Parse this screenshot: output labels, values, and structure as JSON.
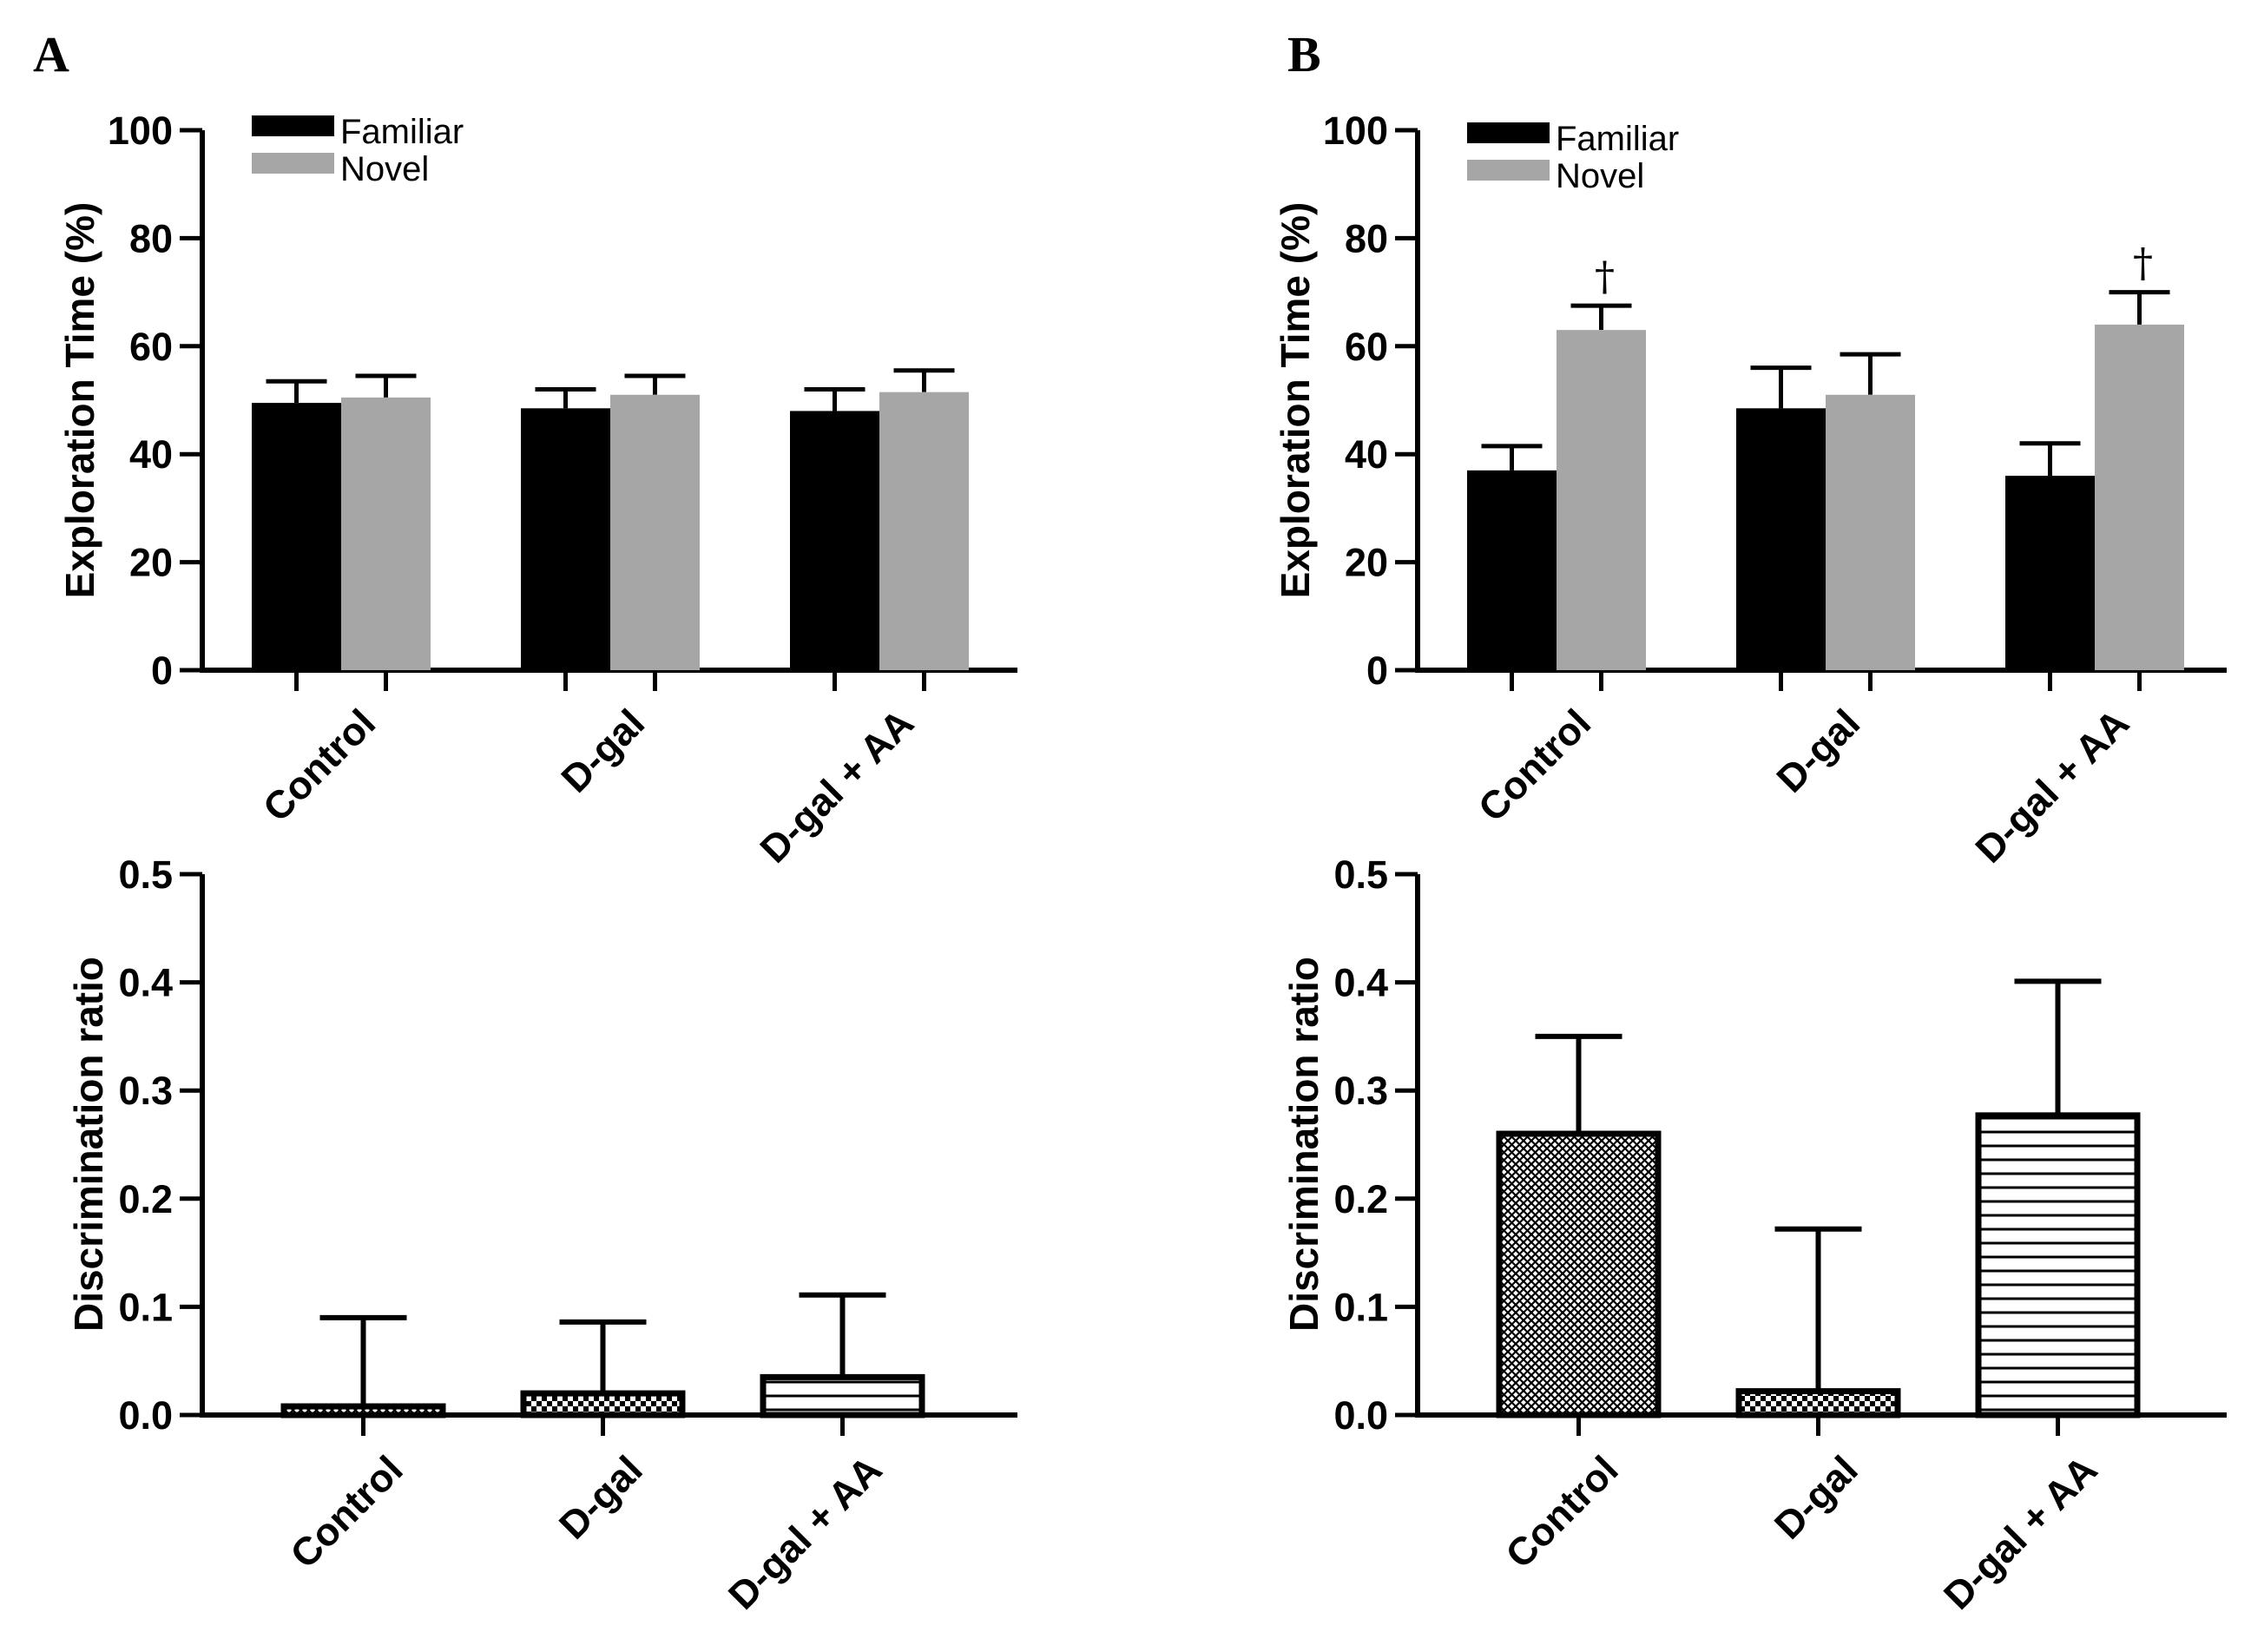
{
  "chart_data": [
    {
      "panel": "A",
      "type": "bar",
      "ylabel": "Exploration Time (%)",
      "ylim": [
        0,
        100
      ],
      "yticks": [
        0,
        20,
        40,
        60,
        80,
        100
      ],
      "categories": [
        "Control",
        "D-gal",
        "D-gal + AA"
      ],
      "series": [
        {
          "name": "Familiar",
          "color": "#000000",
          "values": [
            49.5,
            48.5,
            48
          ],
          "errors": [
            4,
            3.5,
            4
          ]
        },
        {
          "name": "Novel",
          "color": "#a6a6a6",
          "values": [
            50.5,
            51,
            51.5
          ],
          "errors": [
            4,
            3.5,
            4
          ]
        }
      ],
      "annotations": []
    },
    {
      "panel": "B",
      "type": "bar",
      "ylabel": "Exploration Time (%)",
      "ylim": [
        0,
        100
      ],
      "yticks": [
        0,
        20,
        40,
        60,
        80,
        100
      ],
      "categories": [
        "Control",
        "D-gal",
        "D-gal + AA"
      ],
      "series": [
        {
          "name": "Familiar",
          "color": "#000000",
          "values": [
            37,
            48.5,
            36
          ],
          "errors": [
            4.5,
            7.5,
            6
          ]
        },
        {
          "name": "Novel",
          "color": "#a6a6a6",
          "values": [
            63,
            51,
            64
          ],
          "errors": [
            4.5,
            7.5,
            6
          ]
        }
      ],
      "annotations": [
        {
          "text": "†",
          "category": "Control",
          "series": "Novel"
        },
        {
          "text": "†",
          "category": "D-gal + AA",
          "series": "Novel"
        }
      ]
    },
    {
      "panel": "",
      "type": "bar",
      "ylabel": "Discrimination ratio",
      "ylim": [
        0,
        0.5
      ],
      "yticks": [
        "0.0",
        "0.1",
        "0.2",
        "0.3",
        "0.4",
        "0.5"
      ],
      "categories": [
        "Control",
        "D-gal",
        "D-gal + AA"
      ],
      "values": [
        0.008,
        0.02,
        0.035
      ],
      "errors": [
        0.082,
        0.066,
        0.076
      ],
      "patterns": [
        "crosshatch",
        "checker",
        "horizontal-lines"
      ]
    },
    {
      "panel": "",
      "type": "bar",
      "ylabel": "Discrimination ratio",
      "ylim": [
        0,
        0.5
      ],
      "yticks": [
        "0.0",
        "0.1",
        "0.2",
        "0.3",
        "0.4",
        "0.5"
      ],
      "categories": [
        "Control",
        "D-gal",
        "D-gal + AA"
      ],
      "values": [
        0.26,
        0.022,
        0.277
      ],
      "errors": [
        0.09,
        0.15,
        0.124
      ],
      "patterns": [
        "crosshatch",
        "checker",
        "horizontal-lines"
      ]
    }
  ]
}
